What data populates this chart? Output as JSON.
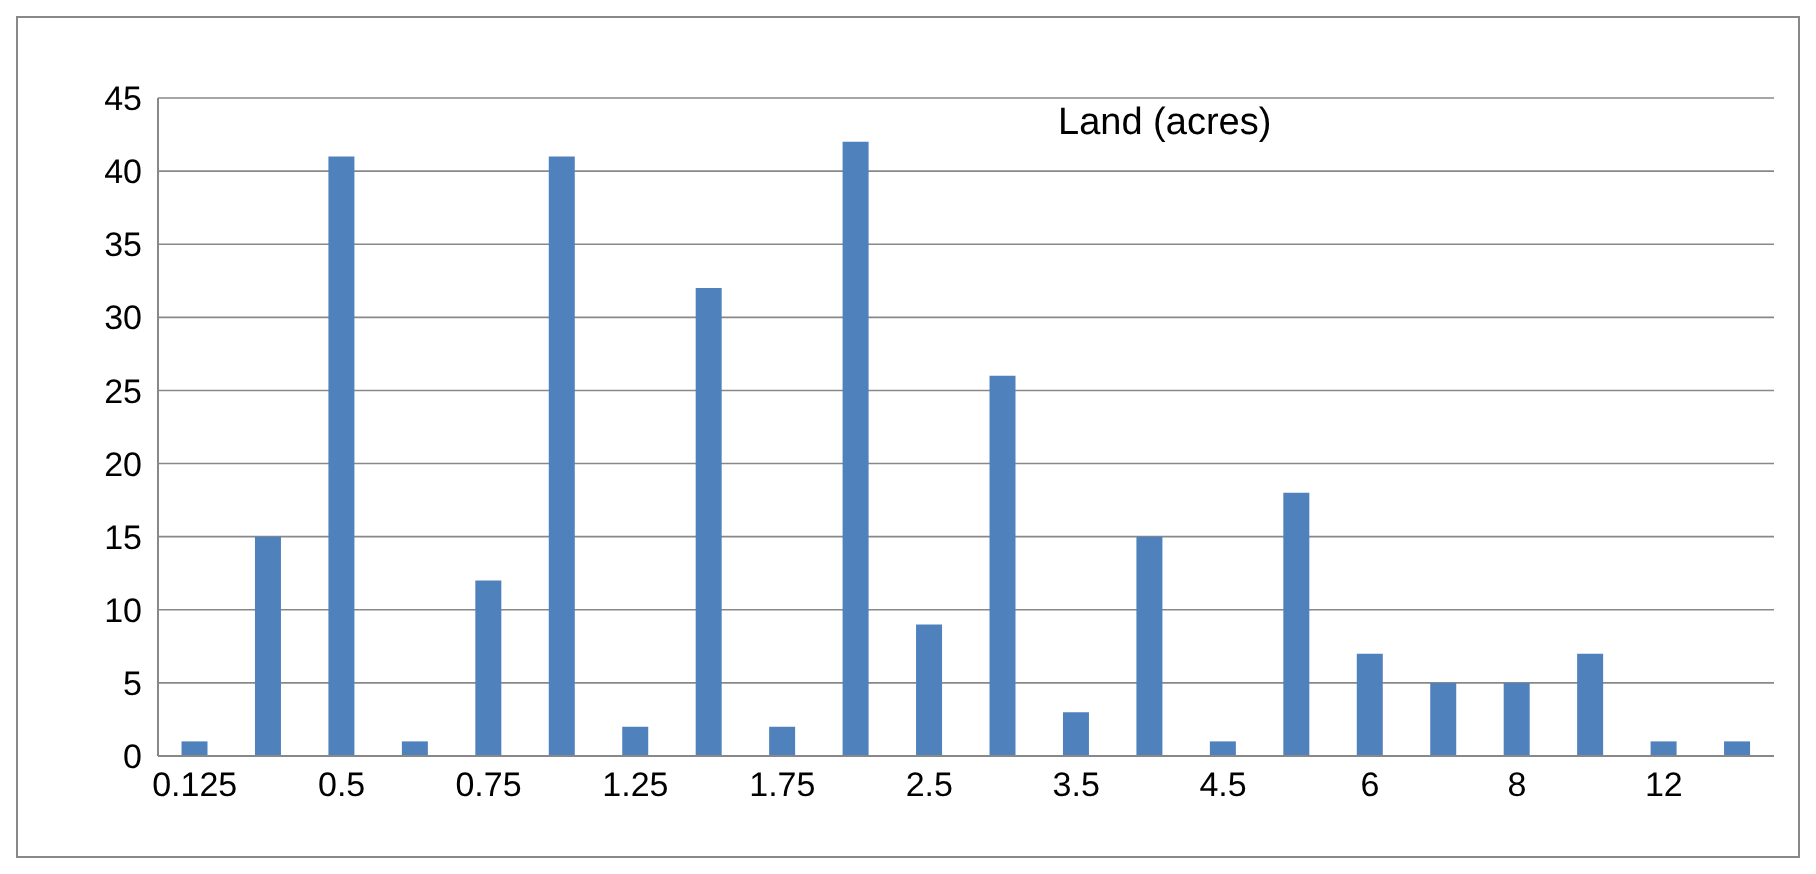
{
  "chart_data": {
    "type": "bar",
    "title": "Land (acres)",
    "categories": [
      "0.125",
      null,
      "0.5",
      null,
      "0.75",
      null,
      "1.25",
      null,
      "1.75",
      null,
      "2.5",
      null,
      "3.5",
      null,
      "4.5",
      null,
      "6",
      null,
      "8",
      null,
      "12",
      null
    ],
    "values": [
      1,
      15,
      41,
      1,
      12,
      41,
      2,
      32,
      2,
      42,
      9,
      26,
      3,
      15,
      1,
      18,
      7,
      5,
      5,
      7,
      1,
      1
    ],
    "color": "#4f81bd",
    "ylim": [
      0,
      45
    ],
    "yticks": [
      0,
      5,
      10,
      15,
      20,
      25,
      30,
      35,
      40,
      45
    ],
    "grid": "y"
  }
}
